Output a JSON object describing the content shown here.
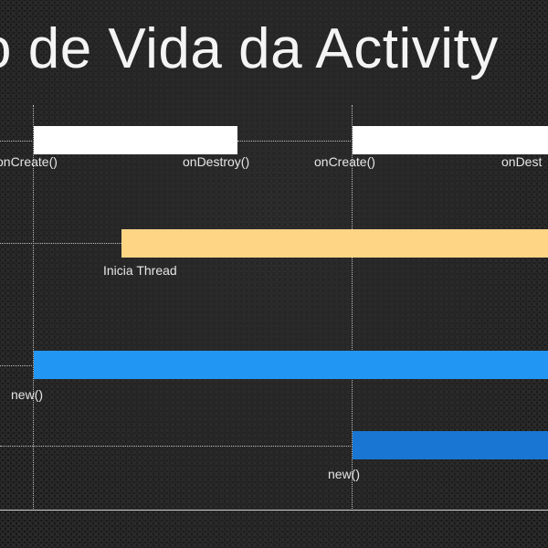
{
  "title": "o de Vida da Activity",
  "lanes": {
    "activity": {
      "labels": {
        "oncreate_1": "onCreate()",
        "ondestroy_1": "onDestroy()",
        "oncreate_2": "onCreate()",
        "ondestroy_2": "onDest"
      }
    },
    "thread": {
      "label": "Inicia Thread"
    },
    "object_1": {
      "label": "new()"
    },
    "object_2": {
      "label": "new()"
    }
  },
  "colors": {
    "activity_bar": "#ffffff",
    "thread_bar": "#fdd585",
    "object_1_bar": "#2196f3",
    "object_2_bar": "#1976d2"
  }
}
